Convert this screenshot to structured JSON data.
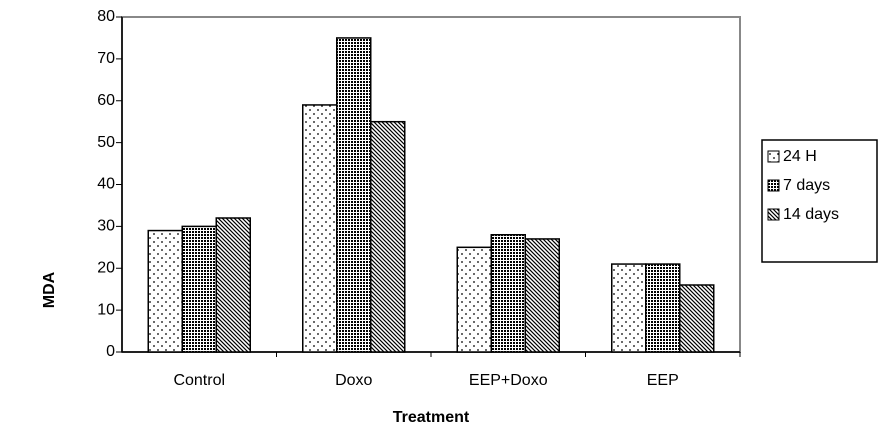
{
  "chart_data": {
    "type": "bar",
    "y_label": "MDA",
    "x_label": "Treatment",
    "categories": [
      "Control",
      "Doxo",
      "EEP+Doxo",
      "EEP"
    ],
    "series": [
      {
        "name": "24 H",
        "color": "#000000",
        "pattern": "dots",
        "values": [
          29,
          59,
          25,
          21
        ]
      },
      {
        "name": "7 days",
        "color": "#000000",
        "pattern": "checker",
        "values": [
          30,
          75,
          28,
          21
        ]
      },
      {
        "name": "14 days",
        "color": "#000000",
        "pattern": "diagonal",
        "values": [
          32,
          55,
          27,
          16
        ]
      }
    ],
    "ylim": [
      0,
      80
    ],
    "yticks": [
      0,
      10,
      20,
      30,
      40,
      50,
      60,
      70,
      80
    ],
    "legend": "right"
  }
}
